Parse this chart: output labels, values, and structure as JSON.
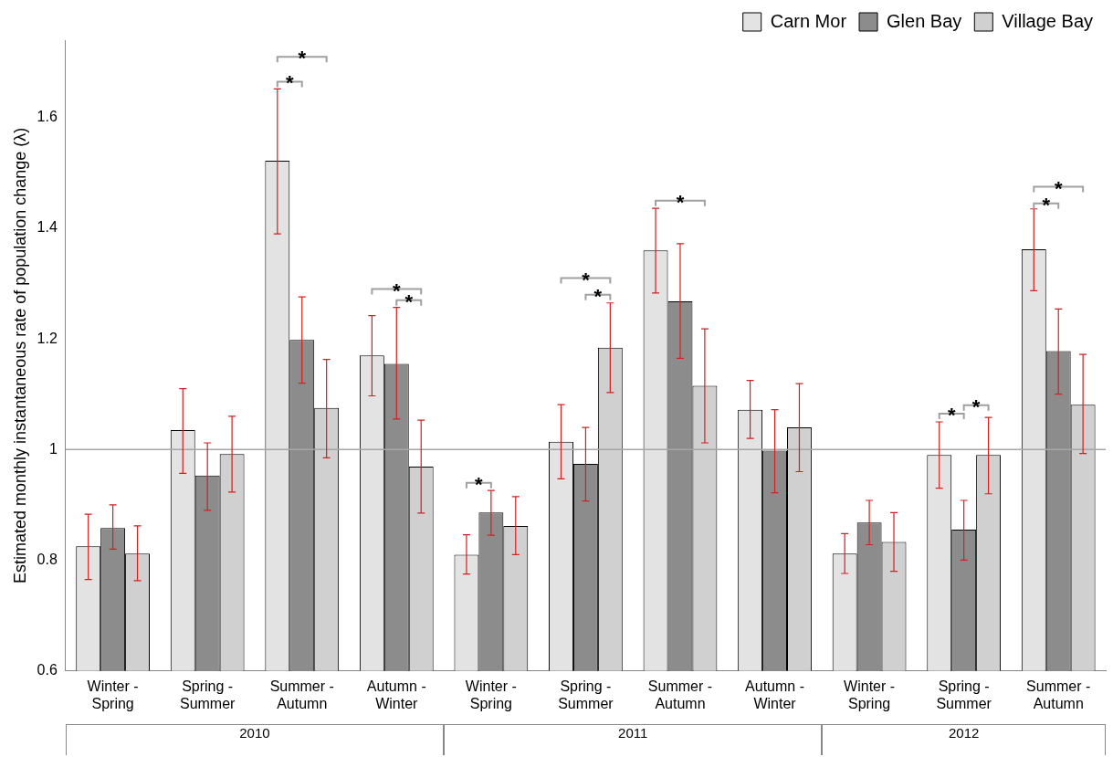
{
  "chart_data": {
    "type": "bar",
    "ylabel": "Estimated monthly instantaneous rate of population change (λ)",
    "categories": [
      "Winter - Spring",
      "Spring - Summer",
      "Summer - Autumn",
      "Autumn - Winter",
      "Winter - Spring",
      "Spring - Summer",
      "Summer - Autumn",
      "Autumn - Winter",
      "Winter - Spring",
      "Spring - Summer",
      "Summer - Autumn"
    ],
    "series": [
      {
        "name": "Carn Mor",
        "color": "#e3e3e3",
        "values": [
          0.825,
          1.035,
          1.522,
          1.17,
          0.81,
          1.014,
          1.36,
          1.072,
          0.812,
          0.99,
          1.362
        ],
        "errors": [
          [
            0.765,
            0.883
          ],
          [
            0.957,
            1.11
          ],
          [
            1.39,
            1.652
          ],
          [
            1.097,
            1.242
          ],
          [
            0.775,
            0.846
          ],
          [
            0.947,
            1.081
          ],
          [
            1.283,
            1.436
          ],
          [
            1.02,
            1.125
          ],
          [
            0.776,
            0.848
          ],
          [
            0.93,
            1.05
          ],
          [
            1.287,
            1.435
          ]
        ]
      },
      {
        "name": "Glen Bay",
        "color": "#8c8c8c",
        "values": [
          0.858,
          0.953,
          1.198,
          1.155,
          0.886,
          0.974,
          1.268,
          0.998,
          0.868,
          0.855,
          1.178
        ],
        "errors": [
          [
            0.82,
            0.9
          ],
          [
            0.89,
            1.012
          ],
          [
            1.12,
            1.276
          ],
          [
            1.055,
            1.257
          ],
          [
            0.845,
            0.926
          ],
          [
            0.907,
            1.04
          ],
          [
            1.165,
            1.372
          ],
          [
            0.922,
            1.072
          ],
          [
            0.828,
            0.908
          ],
          [
            0.8,
            0.908
          ],
          [
            1.1,
            1.254
          ]
        ]
      },
      {
        "name": "Village Bay",
        "color": "#d0d0d0",
        "values": [
          0.812,
          0.992,
          1.075,
          0.969,
          0.862,
          1.184,
          1.115,
          1.04,
          0.833,
          0.99,
          1.081
        ],
        "errors": [
          [
            0.763,
            0.862
          ],
          [
            0.923,
            1.06
          ],
          [
            0.985,
            1.163
          ],
          [
            0.885,
            1.053
          ],
          [
            0.81,
            0.915
          ],
          [
            1.103,
            1.265
          ],
          [
            1.012,
            1.218
          ],
          [
            0.96,
            1.119
          ],
          [
            0.78,
            0.886
          ],
          [
            0.92,
            1.058
          ],
          [
            0.993,
            1.172
          ]
        ]
      }
    ],
    "ylim": [
      0.6,
      1.74
    ],
    "yticks": [
      0.6,
      0.8,
      1,
      1.2,
      1.4,
      1.6
    ],
    "grid": false,
    "legend": "top right",
    "ref_lines": [
      {
        "axis": "y",
        "value": 1,
        "color": "#a6a6a6"
      }
    ],
    "annotations": [
      "*",
      "*",
      "*",
      "*",
      "*",
      "*",
      "*",
      "*",
      "*",
      "*",
      "*",
      "*",
      "2010",
      "2011",
      "2012"
    ]
  }
}
